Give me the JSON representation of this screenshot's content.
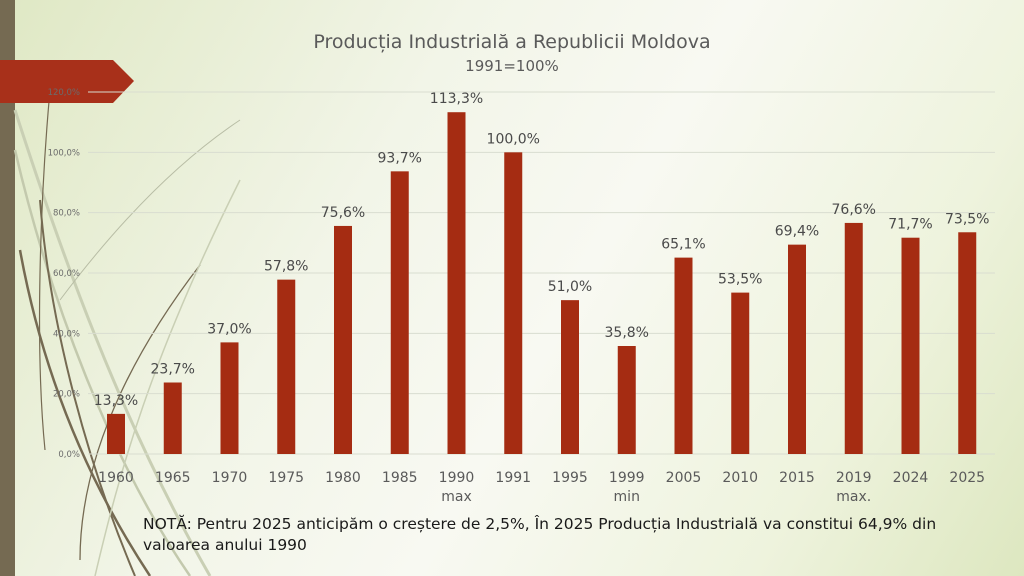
{
  "slide": {
    "title": "Producția Industrială a Republicii Moldova",
    "subtitle": "1991=100%",
    "note": "NOTĂ: Pentru 2025 anticipăm o creștere de 2,5%, În 2025 Producția Industrială va constitui 64,9% din valoarea anului 1990"
  },
  "colors": {
    "bar": "#a52c12",
    "accent": "#a8301a",
    "sidebar": "#756a52",
    "grid": "#d9ddd0",
    "text": "#5a5a5a"
  },
  "chart_data": {
    "type": "bar",
    "title": "Producția Industrială a Republicii Moldova",
    "subtitle": "1991=100%",
    "xlabel": "",
    "ylabel": "",
    "categories": [
      "1960",
      "1965",
      "1970",
      "1975",
      "1980",
      "1985",
      "1990",
      "1991",
      "1995",
      "1999",
      "2005",
      "2010",
      "2015",
      "2019",
      "2024",
      "2025"
    ],
    "category_sublabels": [
      "",
      "",
      "",
      "",
      "",
      "",
      "max",
      "",
      "",
      "min",
      "",
      "",
      "",
      "max.",
      "",
      ""
    ],
    "values": [
      13.3,
      23.7,
      37.0,
      57.8,
      75.6,
      93.7,
      113.3,
      100.0,
      51.0,
      35.8,
      65.1,
      53.5,
      69.4,
      76.6,
      71.7,
      73.5
    ],
    "data_labels": [
      "13,3%",
      "23,7%",
      "37,0%",
      "57,8%",
      "75,6%",
      "93,7%",
      "113,3%",
      "100,0%",
      "51,0%",
      "35,8%",
      "65,1%",
      "53,5%",
      "69,4%",
      "76,6%",
      "71,7%",
      "73,5%"
    ],
    "ylim": [
      0,
      120
    ],
    "yticks": [
      0,
      20,
      40,
      60,
      80,
      100,
      120
    ],
    "ytick_labels": [
      "0,0%",
      "20,0%",
      "40,0%",
      "60,0%",
      "80,0%",
      "100,0%",
      "120,0%"
    ],
    "grid": true,
    "legend": "none"
  }
}
